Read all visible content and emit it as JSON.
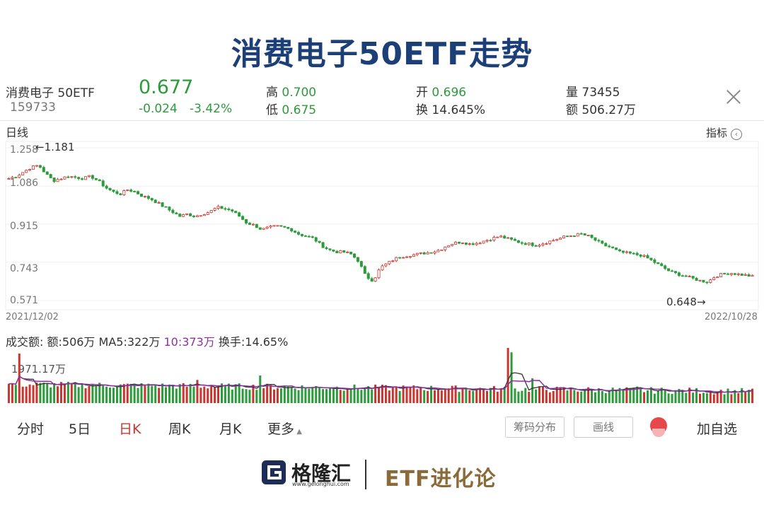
{
  "title": "消费电子50ETF走势",
  "header": {
    "name": "消费电子 50ETF",
    "code": "159733",
    "price": "0.677",
    "change": "-0.024",
    "change_pct": "-3.42%",
    "high_label": "高",
    "high": "0.700",
    "low_label": "低",
    "low": "0.675",
    "open_label": "开",
    "open": "0.696",
    "turnover_label": "换",
    "turnover": "14.645%",
    "volume_label": "量",
    "volume": "73455",
    "amount_label": "额",
    "amount": "506.27万"
  },
  "chart_header": {
    "period": "日线",
    "indicator": "指标"
  },
  "chart_data": {
    "type": "candlestick",
    "y_ticks": [
      "1.258",
      "1.086",
      "0.915",
      "0.743",
      "0.571"
    ],
    "ylim": [
      0.571,
      1.258
    ],
    "x_start": "2021/12/02",
    "x_end": "2022/10/28",
    "annotations": {
      "high": "←1.181",
      "low": "0.648→"
    },
    "close_path": [
      1.12,
      1.13,
      1.15,
      1.17,
      1.18,
      1.14,
      1.11,
      1.12,
      1.13,
      1.125,
      1.12,
      1.13,
      1.11,
      1.08,
      1.06,
      1.05,
      1.07,
      1.06,
      1.04,
      1.03,
      1.01,
      0.99,
      0.97,
      0.95,
      0.96,
      0.95,
      0.96,
      0.97,
      0.99,
      0.985,
      0.975,
      0.95,
      0.92,
      0.91,
      0.89,
      0.9,
      0.905,
      0.9,
      0.89,
      0.87,
      0.86,
      0.85,
      0.82,
      0.8,
      0.79,
      0.79,
      0.78,
      0.75,
      0.68,
      0.66,
      0.72,
      0.74,
      0.76,
      0.77,
      0.775,
      0.78,
      0.785,
      0.79,
      0.8,
      0.82,
      0.83,
      0.835,
      0.825,
      0.83,
      0.84,
      0.85,
      0.86,
      0.85,
      0.84,
      0.83,
      0.825,
      0.82,
      0.83,
      0.84,
      0.85,
      0.86,
      0.865,
      0.87,
      0.86,
      0.84,
      0.82,
      0.81,
      0.79,
      0.785,
      0.78,
      0.775,
      0.76,
      0.74,
      0.72,
      0.7,
      0.69,
      0.68,
      0.67,
      0.66,
      0.655,
      0.68,
      0.69,
      0.695,
      0.69,
      0.685,
      0.68
    ],
    "volume": {
      "legend": {
        "label": "成交额:",
        "amount": "额:506万",
        "ma5": "MA5:322万",
        "ma10": "10:373万",
        "turnover": "换手:14.65%"
      },
      "ymax_label": "1971.17万"
    }
  },
  "tabs": [
    "分时",
    "5日",
    "日K",
    "周K",
    "月K",
    "更多"
  ],
  "active_tab": "日K",
  "buttons": {
    "chips": "筹码分布",
    "draw": "画线",
    "add": "加自选"
  },
  "footer": {
    "brand": "格隆汇",
    "url": "www.gelonghui.com",
    "tagline": "ETF进化论"
  },
  "colors": {
    "title": "#1c3f78",
    "down": "#2d9a3c",
    "up": "#c8362f",
    "ma10": "#8e2fa4"
  }
}
